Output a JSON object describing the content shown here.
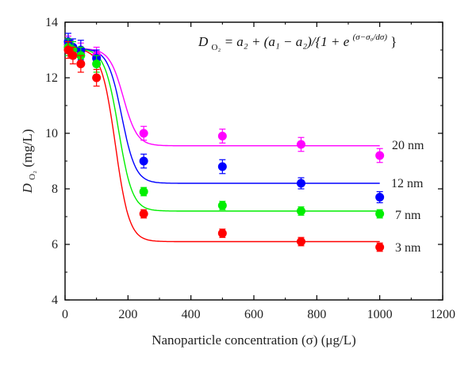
{
  "chart_data": {
    "type": "scatter",
    "xlabel": "Nanoparticle concentration (σ) (μg/L)",
    "ylabel": "D",
    "ylabel_sub": "O₂",
    "ylabel_unit": "(mg/L)",
    "xlim": [
      0,
      1200
    ],
    "ylim": [
      4,
      14
    ],
    "x_ticks": [
      "0",
      "200",
      "400",
      "600",
      "800",
      "1000",
      "1200"
    ],
    "y_ticks": [
      "4",
      "6",
      "8",
      "10",
      "12",
      "14"
    ],
    "grid": false,
    "legend_placement": "right",
    "formula": "D_O₂ = a₂ + (a₁ − a₂)/{1 + e^((σ−σ₀/dσ))}",
    "formula_parts": {
      "lhs": "D",
      "lhs_sub": "O₂",
      "rhs_main": " = a₂ + (a₁ − a₂)/{1 + e",
      "exponent": "(σ−σ₀/dσ)",
      "close": "}"
    },
    "x": [
      10,
      25,
      50,
      100,
      250,
      500,
      750,
      1000
    ],
    "series": [
      {
        "name": "20 nm",
        "color": "#ff00ff",
        "values": [
          13.2,
          13.0,
          12.9,
          12.8,
          10.0,
          9.9,
          9.6,
          9.2
        ],
        "errors": [
          0.3,
          0.3,
          0.35,
          0.3,
          0.25,
          0.25,
          0.25,
          0.25
        ],
        "fit": {
          "a1": 13.05,
          "a2": 9.55,
          "x0": 185,
          "dx": 22
        }
      },
      {
        "name": "12 nm",
        "color": "#0000ff",
        "values": [
          13.3,
          13.1,
          13.0,
          12.7,
          9.0,
          8.8,
          8.2,
          7.7
        ],
        "errors": [
          0.3,
          0.3,
          0.35,
          0.3,
          0.25,
          0.25,
          0.2,
          0.2
        ],
        "fit": {
          "a1": 13.05,
          "a2": 8.2,
          "x0": 180,
          "dx": 22
        }
      },
      {
        "name": "7 nm",
        "color": "#00ee00",
        "values": [
          13.1,
          13.0,
          12.8,
          12.5,
          7.9,
          7.4,
          7.2,
          7.1
        ],
        "errors": [
          0.3,
          0.3,
          0.3,
          0.3,
          0.15,
          0.15,
          0.15,
          0.15
        ],
        "fit": {
          "a1": 13.05,
          "a2": 7.2,
          "x0": 170,
          "dx": 22
        }
      },
      {
        "name": "3 nm",
        "color": "#ff0000",
        "values": [
          13.0,
          12.8,
          12.5,
          12.0,
          7.1,
          6.4,
          6.1,
          5.9
        ],
        "errors": [
          0.3,
          0.3,
          0.3,
          0.3,
          0.15,
          0.15,
          0.15,
          0.15
        ],
        "fit": {
          "a1": 13.05,
          "a2": 6.1,
          "x0": 160,
          "dx": 22
        }
      }
    ]
  }
}
